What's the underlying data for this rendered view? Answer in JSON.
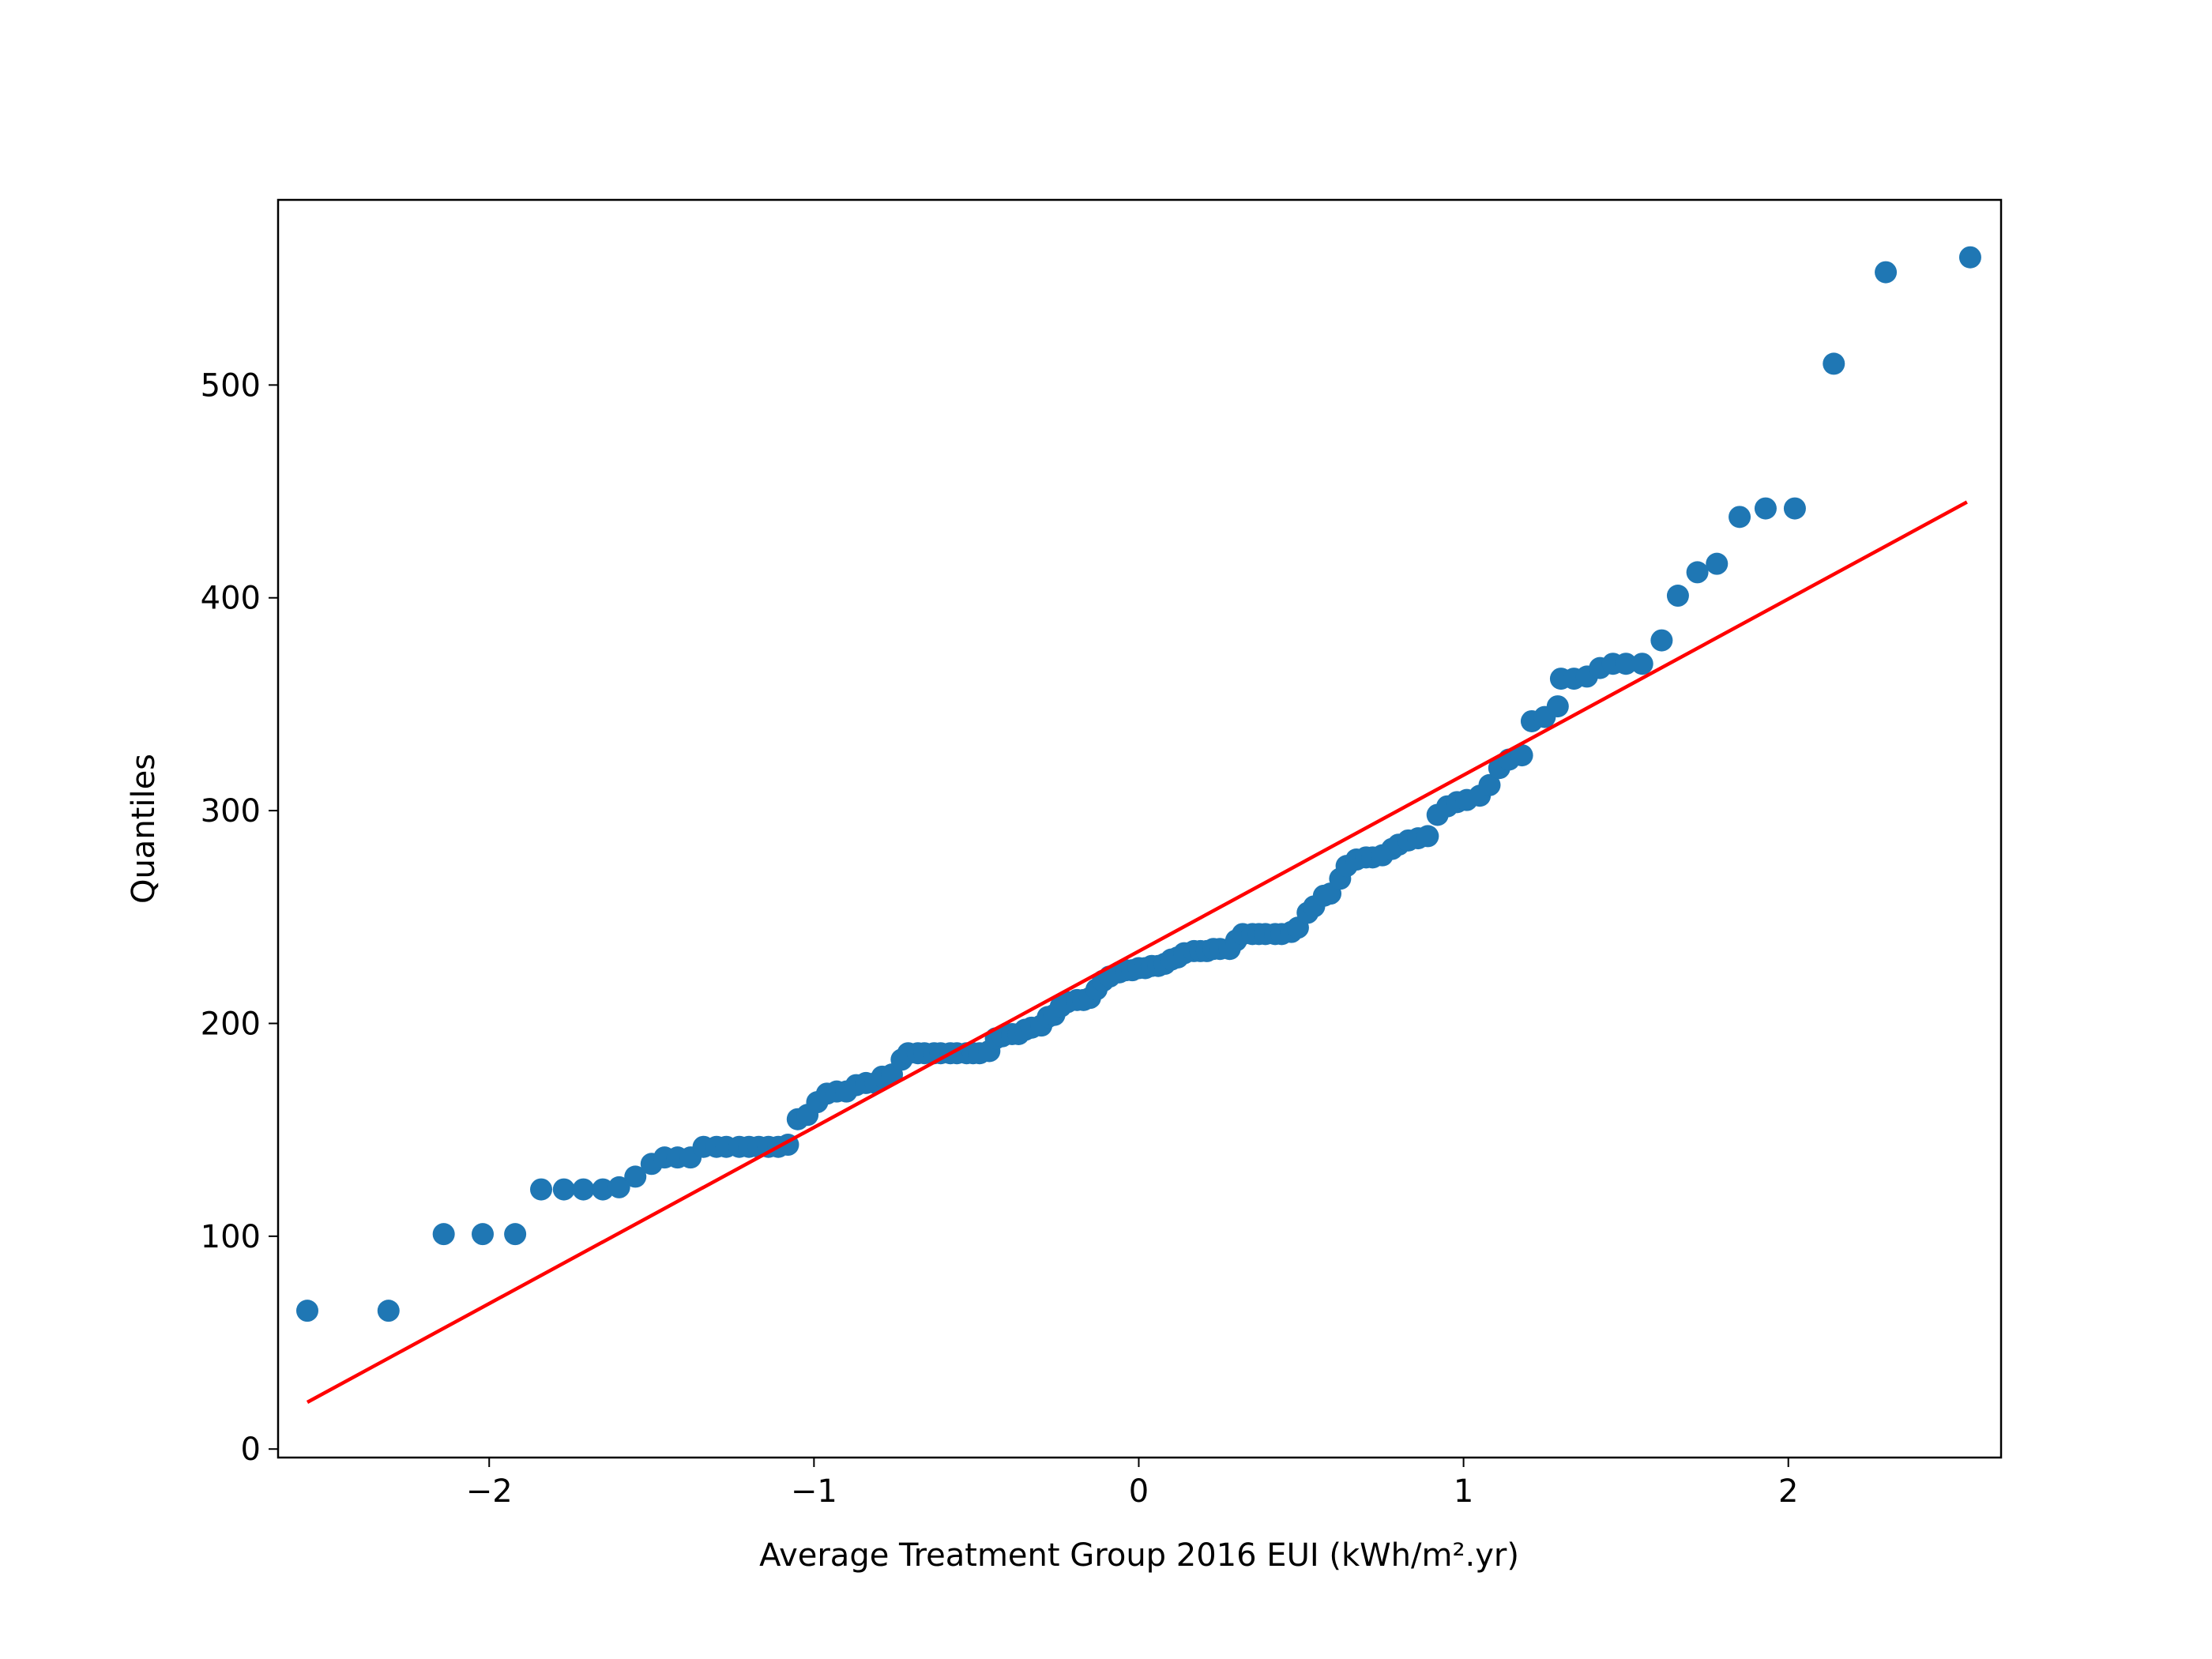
{
  "chart_data": {
    "type": "scatter",
    "x_label": "Average Treatment Group 2016 EUI (kWh/m².yr)",
    "y_label": "Quantiles",
    "xlim": [
      -2.65,
      2.655
    ],
    "ylim": [
      -4,
      587
    ],
    "xticks": [
      {
        "value": -2,
        "label": "−2"
      },
      {
        "value": -1,
        "label": "−1"
      },
      0,
      1,
      2
    ],
    "yticks": [
      0,
      100,
      200,
      300,
      400,
      500
    ],
    "grid": false,
    "series": [
      {
        "color": "#1f77b4",
        "x": [
          -2.56,
          -2.31,
          -2.14,
          -2.02,
          -1.92,
          -1.84,
          -1.77,
          -1.71,
          -1.65,
          -1.6,
          -1.55,
          -1.5,
          -1.46,
          -1.42,
          -1.38,
          -1.34,
          -1.3,
          -1.27,
          -1.23,
          -1.2,
          -1.17,
          -1.14,
          -1.11,
          -1.08,
          -1.05,
          -1.02,
          -0.99,
          -0.96,
          -0.93,
          -0.9,
          -0.87,
          -0.84,
          -0.81,
          -0.79,
          -0.76,
          -0.73,
          -0.71,
          -0.68,
          -0.66,
          -0.63,
          -0.61,
          -0.58,
          -0.56,
          -0.53,
          -0.51,
          -0.49,
          -0.46,
          -0.44,
          -0.42,
          -0.39,
          -0.37,
          -0.35,
          -0.33,
          -0.3,
          -0.28,
          -0.26,
          -0.24,
          -0.22,
          -0.19,
          -0.17,
          -0.15,
          -0.13,
          -0.11,
          -0.09,
          -0.06,
          -0.04,
          -0.02,
          0,
          0.02,
          0.04,
          0.06,
          0.08,
          0.1,
          0.12,
          0.14,
          0.17,
          0.19,
          0.21,
          0.23,
          0.25,
          0.28,
          0.3,
          0.32,
          0.35,
          0.37,
          0.39,
          0.42,
          0.44,
          0.47,
          0.49,
          0.52,
          0.54,
          0.57,
          0.59,
          0.62,
          0.64,
          0.67,
          0.7,
          0.72,
          0.75,
          0.78,
          0.8,
          0.83,
          0.86,
          0.89,
          0.92,
          0.95,
          0.98,
          1.01,
          1.05,
          1.08,
          1.11,
          1.14,
          1.18,
          1.21,
          1.25,
          1.29,
          1.3,
          1.34,
          1.38,
          1.42,
          1.46,
          1.5,
          1.55,
          1.61,
          1.66,
          1.72,
          1.78,
          1.85,
          1.93,
          2.02,
          2.14,
          2.3,
          2.56
        ],
        "values": [
          65,
          65,
          101,
          101,
          101,
          122,
          122,
          122,
          122,
          123,
          128,
          134,
          137,
          137,
          137,
          142,
          142,
          142,
          142,
          142,
          142,
          142,
          142,
          143,
          155,
          157,
          163,
          167,
          168,
          168,
          171,
          172,
          172,
          175,
          176,
          183,
          186,
          186,
          186,
          186,
          186,
          186,
          186,
          186,
          186,
          186,
          187,
          193,
          194,
          195,
          195,
          197,
          198,
          199,
          203,
          204,
          208,
          210,
          211,
          211,
          212,
          216,
          220,
          222,
          224,
          225,
          225,
          226,
          226,
          227,
          227,
          228,
          230,
          231,
          233,
          234,
          234,
          234,
          235,
          235,
          235,
          239,
          242,
          242,
          242,
          242,
          242,
          242,
          243,
          245,
          252,
          255,
          260,
          261,
          268,
          274,
          277,
          278,
          278,
          279,
          282,
          284,
          286,
          287,
          288,
          298,
          302,
          304,
          305,
          307,
          312,
          320,
          324,
          326,
          342,
          344,
          349,
          362,
          362,
          363,
          367,
          369,
          369,
          369,
          380,
          401,
          412,
          416,
          438,
          442,
          442,
          510,
          553,
          560
        ]
      }
    ],
    "fit_line": {
      "color": "red",
      "x": [
        -2.56,
        2.55
      ],
      "values": [
        22,
        445
      ]
    }
  }
}
